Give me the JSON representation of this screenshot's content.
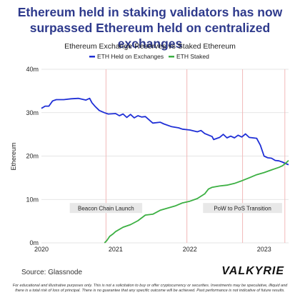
{
  "headline": {
    "line1": "Ethereum held in staking validators has now",
    "line2": "surpassed Ethereum held on centralized exchanges"
  },
  "source": "Source: Glassnode",
  "logo": "VALKYRIE",
  "disclaimer": {
    "line1": "For educational and illustrative purposes only. This is not a solicitation to buy or offer cryptocurrency or securities. Investments may be speculative, illiquid and",
    "line2": "there is a total risk of loss of principal. There is no guarantee that any specific outcome will be achieved. Past performance is not indicative of future results."
  },
  "colors": {
    "exchanges": "#1f2fd6",
    "staked": "#3cb043",
    "event_line": "#f2b8b8",
    "annotation_bg": "#e8e8e8",
    "headline": "#2e3a8c"
  },
  "chart_data": {
    "type": "line",
    "title": "Ethereum Exchange Reserves vs Staked Ethereum",
    "ylabel": "Ethereum",
    "xlabel": "",
    "ylim": [
      0,
      40
    ],
    "yticks": [
      "0m",
      "10m",
      "20m",
      "30m",
      "40m"
    ],
    "xticks": [
      "2020",
      "2021",
      "2022",
      "2023"
    ],
    "xlim": [
      2020.0,
      2023.33
    ],
    "legend_position": "top-center",
    "grid": "horizontal",
    "series": [
      {
        "name": "ETH Held on Exchanges",
        "x": [
          2020.0,
          2020.05,
          2020.1,
          2020.15,
          2020.2,
          2020.3,
          2020.4,
          2020.5,
          2020.6,
          2020.65,
          2020.68,
          2020.72,
          2020.78,
          2020.85,
          2020.9,
          2021.0,
          2021.05,
          2021.1,
          2021.15,
          2021.2,
          2021.25,
          2021.3,
          2021.35,
          2021.4,
          2021.5,
          2021.6,
          2021.65,
          2021.75,
          2021.85,
          2021.9,
          2022.0,
          2022.1,
          2022.15,
          2022.2,
          2022.3,
          2022.32,
          2022.4,
          2022.45,
          2022.5,
          2022.55,
          2022.6,
          2022.65,
          2022.7,
          2022.75,
          2022.8,
          2022.85,
          2022.9,
          2022.95,
          2023.0,
          2023.05,
          2023.1,
          2023.15,
          2023.2,
          2023.25,
          2023.3,
          2023.33
        ],
        "values": [
          31.0,
          31.5,
          31.5,
          32.7,
          33.0,
          33.0,
          33.2,
          33.3,
          32.9,
          33.3,
          32.3,
          31.5,
          30.5,
          30.0,
          29.7,
          29.8,
          29.3,
          29.7,
          28.9,
          29.6,
          28.8,
          29.3,
          29.0,
          29.1,
          27.6,
          27.8,
          27.4,
          26.8,
          26.5,
          26.2,
          26.0,
          25.6,
          25.9,
          25.2,
          24.5,
          23.8,
          24.3,
          25.0,
          24.2,
          24.6,
          24.2,
          24.8,
          24.4,
          25.1,
          24.3,
          24.2,
          24.1,
          22.5,
          20.0,
          19.6,
          19.5,
          19.0,
          18.9,
          18.6,
          18.2,
          18.0
        ]
      },
      {
        "name": "ETH Staked",
        "x": [
          2020.85,
          2020.88,
          2020.92,
          2020.96,
          2021.0,
          2021.1,
          2021.2,
          2021.3,
          2021.4,
          2021.5,
          2021.6,
          2021.7,
          2021.8,
          2021.9,
          2022.0,
          2022.1,
          2022.2,
          2022.25,
          2022.3,
          2022.4,
          2022.5,
          2022.6,
          2022.7,
          2022.8,
          2022.9,
          2023.0,
          2023.1,
          2023.2,
          2023.25,
          2023.3,
          2023.33
        ],
        "values": [
          0.0,
          0.5,
          1.5,
          2.0,
          2.6,
          3.6,
          4.2,
          5.1,
          6.4,
          6.6,
          7.5,
          8.0,
          8.5,
          9.2,
          9.6,
          10.2,
          11.3,
          12.4,
          12.8,
          13.1,
          13.3,
          13.7,
          14.3,
          15.0,
          15.7,
          16.2,
          16.8,
          17.4,
          17.8,
          18.5,
          19.0
        ]
      }
    ],
    "events": [
      {
        "x": 2020.87,
        "label": "Beacon Chain Launch"
      },
      {
        "x": 2021.96
      },
      {
        "x": 2022.71,
        "label": "PoW to PoS Transition"
      },
      {
        "x": 2023.28
      }
    ]
  }
}
